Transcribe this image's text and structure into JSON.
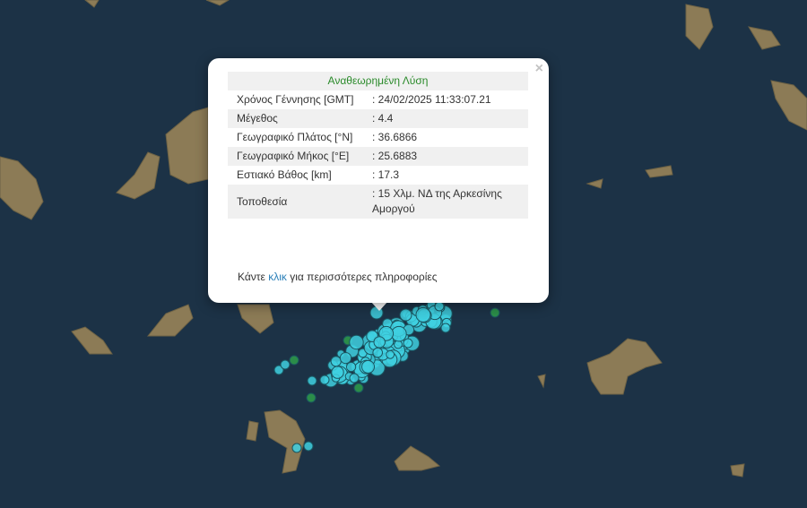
{
  "popup": {
    "title": "Αναθεωρημένη Λύση",
    "close_label": "×",
    "rows": [
      {
        "label": "Χρόνος Γέννησης [GMT]",
        "value": ": 24/02/2025 11:33:07.21"
      },
      {
        "label": "Μέγεθος",
        "value": ": 4.4"
      },
      {
        "label": "Γεωγραφικό Πλάτος [°N]",
        "value": ": 36.6866"
      },
      {
        "label": "Γεωγραφικό Μήκος [°E]",
        "value": ": 25.6883"
      },
      {
        "label": "Εστιακό Βάθος [km]",
        "value": ": 17.3"
      },
      {
        "label": "Τοποθεσία",
        "value": ": 15 Χλμ. ΝΔ της Αρκεσίνης Αμοργού"
      }
    ],
    "footer_pre": "Κάντε ",
    "footer_link": "κλικ",
    "footer_post": " για περισσότερες πληροφορίες"
  },
  "colors": {
    "sea": "#1c3246",
    "land": "#8a7a55",
    "marker_recent": "#3fd0e0",
    "marker_old": "#2e9e4a",
    "title_green": "#2a8a2a"
  }
}
